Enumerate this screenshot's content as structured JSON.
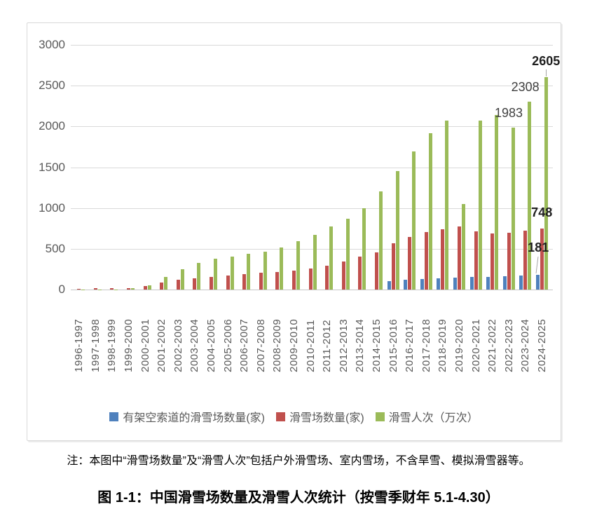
{
  "chart_data": {
    "type": "bar",
    "title": "",
    "xlabel": "",
    "ylabel": "",
    "ylim": [
      0,
      3000
    ],
    "y_ticks": [
      0,
      500,
      1000,
      1500,
      2000,
      2500,
      3000
    ],
    "grid": true,
    "legend_position": "bottom",
    "categories": [
      "1996-1997",
      "1997-1998",
      "1998-1999",
      "1999-2000",
      "2000-2001",
      "2001-2002",
      "2002-2003",
      "2003-2004",
      "2004-2005",
      "2005-2006",
      "2006-2007",
      "2007-2008",
      "2008-2009",
      "2009-2010",
      "2010-2011",
      "2011-2012",
      "2012-2013",
      "2013-2014",
      "2014-2015",
      "2015-2016",
      "2016-2017",
      "2017-2018",
      "2018-2019",
      "2019-2020",
      "2020-2021",
      "2021-2022",
      "2022-2023",
      "2023-2024",
      "2024-2025"
    ],
    "series": [
      {
        "name": "有架空索道的滑雪场数量(家)",
        "color": "#4F81BD",
        "values": [
          0,
          0,
          0,
          0,
          0,
          0,
          0,
          0,
          0,
          0,
          0,
          0,
          0,
          0,
          0,
          0,
          0,
          0,
          0,
          103,
          118,
          133,
          142,
          148,
          153,
          158,
          164,
          170,
          181
        ]
      },
      {
        "name": "滑雪场数量(家)",
        "color": "#C0504D",
        "values": [
          11,
          15,
          14,
          21,
          45,
          84,
          118,
          140,
          151,
          173,
          187,
          203,
          215,
          229,
          260,
          294,
          348,
          405,
          460,
          568,
          646,
          703,
          742,
          770,
          715,
          692,
          697,
          719,
          748
        ]
      },
      {
        "name": "滑雪人次（万次）",
        "color": "#9BBB59",
        "values": [
          2,
          3,
          4,
          18,
          50,
          158,
          252,
          328,
          378,
          405,
          442,
          468,
          512,
          592,
          672,
          775,
          870,
          995,
          1205,
          1450,
          1690,
          1920,
          2070,
          1045,
          2076,
          2140,
          1983,
          2308,
          2605
        ]
      }
    ],
    "annotations": [
      {
        "text": "2605",
        "category": 28,
        "series": 2,
        "placement": "above",
        "bold": true,
        "leader": true
      },
      {
        "text": "2308",
        "category": 27,
        "series": 2,
        "placement": "upper-left",
        "bold": false,
        "leader": false
      },
      {
        "text": "1983",
        "category": 26,
        "series": 2,
        "placement": "upper-left",
        "bold": false,
        "leader": false
      },
      {
        "text": "748",
        "category": 28,
        "series": 1,
        "placement": "above",
        "bold": true,
        "leader": false
      },
      {
        "text": "181",
        "category": 28,
        "series": 0,
        "placement": "above-high",
        "bold": true,
        "leader": true
      }
    ]
  },
  "colors": {
    "grid": "#D9D9D9",
    "axis": "#C6C6C6",
    "tick_label": "#595959",
    "data_label": "#404040",
    "data_label_bold": "#1F1F1F",
    "frame_border": "#D9D9D9"
  },
  "note": {
    "text": "注：本图中“滑雪场数量”及“滑雪人次”包括户外滑雪场、室内雪场，不含旱雪、模拟滑雪器等。"
  },
  "caption": {
    "text": "图 1-1：中国滑雪场数量及滑雪人次统计（按雪季财年 5.1-4.30）"
  }
}
